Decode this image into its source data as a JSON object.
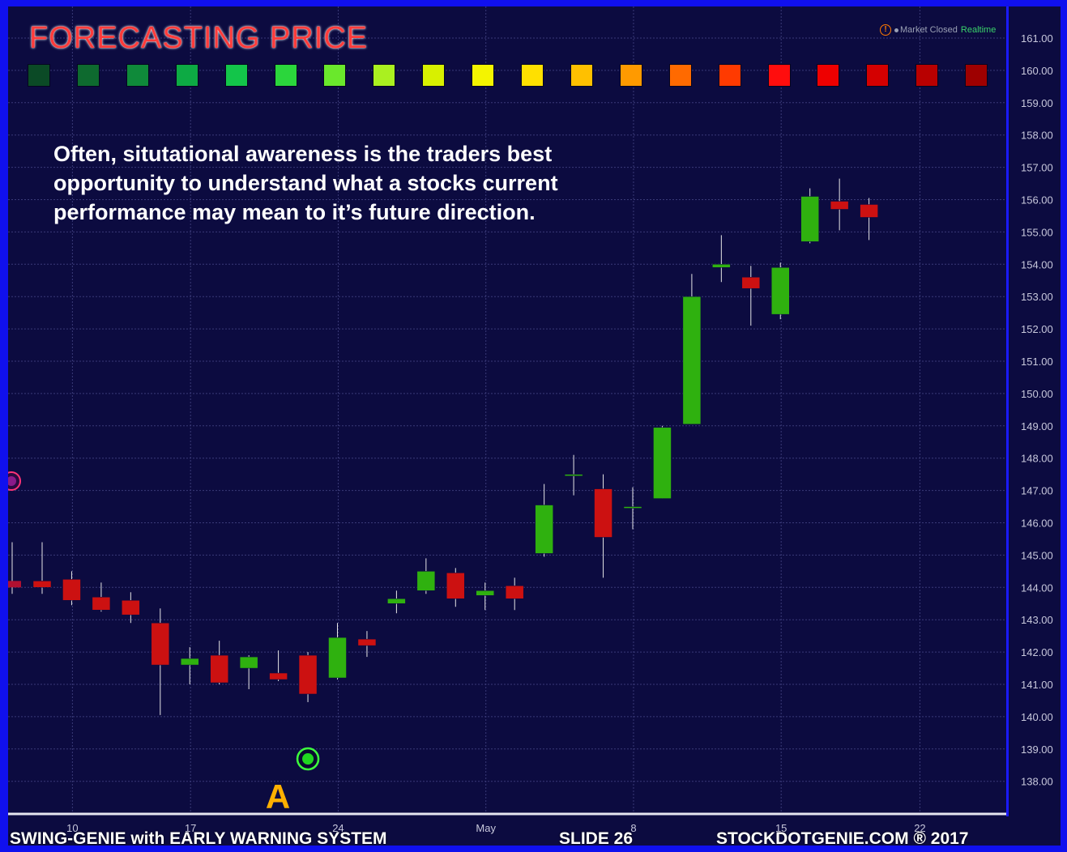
{
  "title": "FORECASTING PRICE",
  "caption": "Often, situtational awareness is the traders best opportunity to understand what a stocks current performance may mean to it’s future direction.",
  "market_status": {
    "alert_icon": "alert-circle-icon",
    "status": "Market Closed",
    "mode": "Realtime"
  },
  "signal_scale": [
    "#0b4a26",
    "#0e6a2f",
    "#0f8a3a",
    "#0daa44",
    "#13c54a",
    "#2bd63c",
    "#6ae82c",
    "#aaf020",
    "#d8f000",
    "#f4f400",
    "#ffe000",
    "#ffc000",
    "#ff9a00",
    "#ff6a00",
    "#ff3a00",
    "#ff0d0d",
    "#ee0000",
    "#d40000",
    "#b80000",
    "#9e0000"
  ],
  "marker": {
    "label": "A",
    "icon": "green-signal-dot-icon",
    "date": "Apr 20"
  },
  "side_marker_icon": "purple-signal-dot-icon",
  "footer": {
    "left": "SWING-GENIE with  EARLY WARNING SYSTEM",
    "center": "SLIDE 26",
    "right": "STOCKDOTGENIE.COM ® 2017"
  },
  "chart_data": {
    "type": "candlestick",
    "title": "",
    "ylim": [
      137.3,
      161.5
    ],
    "y_ticks": [
      "161.00",
      "160.00",
      "159.00",
      "158.00",
      "157.00",
      "156.00",
      "155.00",
      "154.00",
      "153.00",
      "152.00",
      "151.00",
      "150.00",
      "149.00",
      "148.00",
      "147.00",
      "146.00",
      "145.00",
      "144.00",
      "143.00",
      "142.00",
      "141.00",
      "140.00",
      "139.00",
      "138.00"
    ],
    "x_ticks": [
      "10",
      "17",
      "24",
      "May",
      "8",
      "15",
      "22"
    ],
    "grid": true,
    "up_color": "#2fb10f",
    "down_color": "#cc1111",
    "candles": [
      {
        "date": "Apr 6",
        "open": 144.2,
        "high": 145.4,
        "low": 143.8,
        "close": 144.0
      },
      {
        "date": "Apr 7",
        "open": 144.25,
        "high": 144.5,
        "low": 143.45,
        "close": 143.6
      },
      {
        "date": "Apr 10",
        "open": 143.7,
        "high": 144.15,
        "low": 143.25,
        "close": 143.3
      },
      {
        "date": "Apr 11",
        "open": 143.6,
        "high": 143.85,
        "low": 142.9,
        "close": 143.15
      },
      {
        "date": "Apr 12",
        "open": 142.9,
        "high": 143.35,
        "low": 140.05,
        "close": 141.6
      },
      {
        "date": "Apr 13",
        "open": 141.6,
        "high": 142.15,
        "low": 141.0,
        "close": 141.8
      },
      {
        "date": "Apr 17",
        "open": 141.9,
        "high": 142.35,
        "low": 141.0,
        "close": 141.05
      },
      {
        "date": "Apr 18",
        "open": 141.5,
        "high": 141.9,
        "low": 140.85,
        "close": 141.85
      },
      {
        "date": "Apr 19",
        "open": 141.35,
        "high": 142.05,
        "low": 141.1,
        "close": 141.15
      },
      {
        "date": "Apr 20",
        "open": 141.9,
        "high": 142.0,
        "low": 140.45,
        "close": 140.7
      },
      {
        "date": "Apr 21",
        "open": 141.2,
        "high": 142.9,
        "low": 141.15,
        "close": 142.45
      },
      {
        "date": "Apr 24",
        "open": 142.4,
        "high": 142.65,
        "low": 141.85,
        "close": 142.2
      },
      {
        "date": "Apr 25",
        "open": 143.5,
        "high": 143.9,
        "low": 143.2,
        "close": 143.65
      },
      {
        "date": "Apr 26",
        "open": 143.9,
        "high": 144.9,
        "low": 143.8,
        "close": 144.5
      },
      {
        "date": "Apr 27",
        "open": 144.45,
        "high": 144.6,
        "low": 143.4,
        "close": 143.65
      },
      {
        "date": "Apr 28",
        "open": 143.75,
        "high": 144.15,
        "low": 143.3,
        "close": 143.9
      },
      {
        "date": "May 1",
        "open": 144.05,
        "high": 144.3,
        "low": 143.3,
        "close": 143.65
      },
      {
        "date": "May 2",
        "open": 145.05,
        "high": 147.2,
        "low": 144.95,
        "close": 146.55
      },
      {
        "date": "May 3",
        "open": 147.5,
        "high": 148.1,
        "low": 146.85,
        "close": 147.5
      },
      {
        "date": "May 4",
        "open": 147.05,
        "high": 147.5,
        "low": 144.3,
        "close": 145.55
      },
      {
        "date": "May 5",
        "open": 146.5,
        "high": 147.1,
        "low": 145.8,
        "close": 146.5
      },
      {
        "date": "May 8",
        "open": 146.75,
        "high": 149.0,
        "low": 146.75,
        "close": 148.95
      },
      {
        "date": "May 9",
        "open": 149.05,
        "high": 153.7,
        "low": 149.05,
        "close": 153.0
      },
      {
        "date": "May 10",
        "open": 153.9,
        "high": 154.9,
        "low": 153.45,
        "close": 154.0
      },
      {
        "date": "May 11",
        "open": 153.6,
        "high": 153.95,
        "low": 152.1,
        "close": 153.25
      },
      {
        "date": "May 12",
        "open": 152.45,
        "high": 154.05,
        "low": 152.3,
        "close": 153.9
      },
      {
        "date": "May 15",
        "open": 154.7,
        "high": 156.35,
        "low": 154.65,
        "close": 156.1
      },
      {
        "date": "May 16",
        "open": 155.95,
        "high": 156.65,
        "low": 155.05,
        "close": 155.7
      },
      {
        "date": "May 17",
        "open": 155.85,
        "high": 156.05,
        "low": 154.75,
        "close": 155.45
      }
    ]
  }
}
